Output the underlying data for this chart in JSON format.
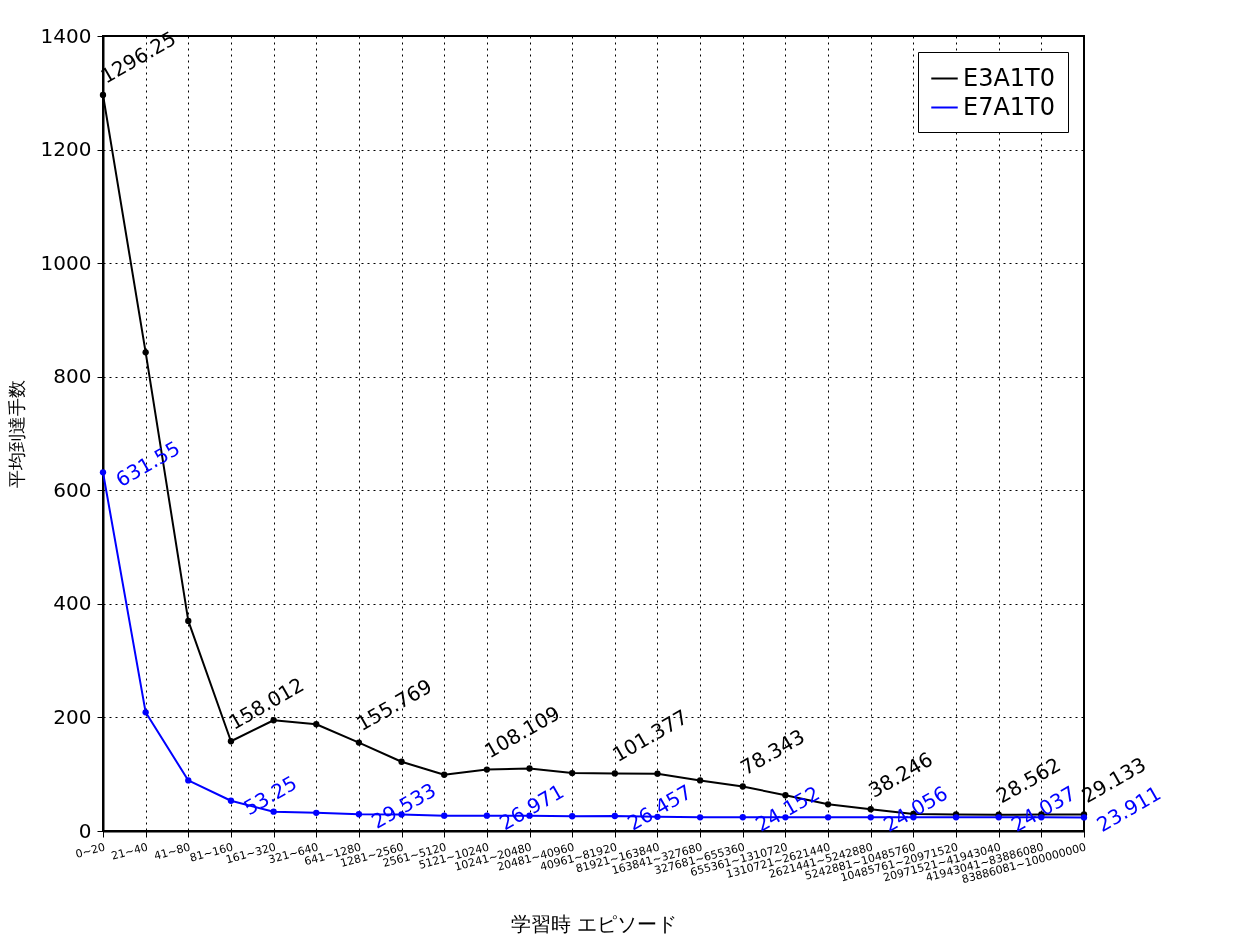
{
  "chart_data": {
    "type": "line",
    "xlabel": "学習時 エピソード",
    "ylabel": "平均到達手数",
    "categories": [
      "0~20",
      "21~40",
      "41~80",
      "81~160",
      "161~320",
      "321~640",
      "641~1280",
      "1281~2560",
      "2561~5120",
      "5121~10240",
      "10241~20480",
      "20481~40960",
      "40961~81920",
      "81921~163840",
      "163841~327680",
      "327681~655360",
      "655361~1310720",
      "1310721~2621440",
      "2621441~5242880",
      "5242881~10485760",
      "10485761~20971520",
      "20971521~41943040",
      "41943041~83886080",
      "83886081~100000000"
    ],
    "series": [
      {
        "name": "E3A1T0",
        "color": "#000000",
        "values": [
          1296.25,
          843,
          370,
          158.012,
          195,
          188,
          155.769,
          122,
          99,
          108.109,
          110,
          102,
          101.377,
          101,
          89,
          78.343,
          63,
          47,
          38.246,
          30,
          29,
          28.562,
          29,
          29.133
        ],
        "value_labels": [
          "1296.25",
          null,
          null,
          "158.012",
          null,
          null,
          "155.769",
          null,
          null,
          "108.109",
          null,
          null,
          "101.377",
          null,
          null,
          "78.343",
          null,
          null,
          "38.246",
          null,
          null,
          "28.562",
          null,
          "29.133"
        ]
      },
      {
        "name": "E7A1T0",
        "color": "#0000ff",
        "values": [
          631.55,
          209,
          89,
          53.25,
          34,
          32,
          29.533,
          29,
          27,
          26.971,
          27,
          26,
          26.457,
          25,
          24,
          24.152,
          24,
          24,
          24.056,
          24,
          24,
          24.037,
          24,
          23.911
        ],
        "value_labels": [
          "631.55",
          null,
          null,
          "53.25",
          null,
          null,
          "29.533",
          null,
          null,
          "26.971",
          null,
          null,
          "26.457",
          null,
          null,
          "24.152",
          null,
          null,
          "24.056",
          null,
          null,
          "24.037",
          null,
          "23.911"
        ]
      }
    ],
    "ylim": [
      0,
      1400
    ],
    "yticks": [
      0,
      200,
      400,
      600,
      800,
      1000,
      1200,
      1400
    ],
    "grid": true,
    "legend": "top right",
    "marker": "circle",
    "line_style": "solid"
  }
}
